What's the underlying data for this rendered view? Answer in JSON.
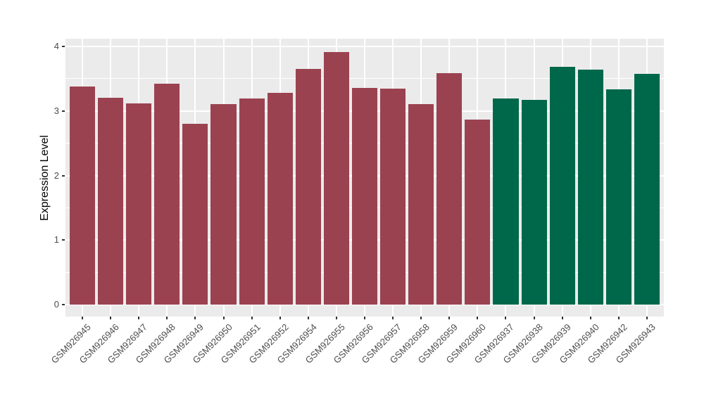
{
  "chart_data": {
    "type": "bar",
    "title": "",
    "xlabel": "",
    "ylabel": "Expression Level",
    "ylim": [
      0,
      4
    ],
    "y_ticks": [
      0,
      1,
      2,
      3,
      4
    ],
    "y_minor_gridlines": [
      0.5,
      1.5,
      2.5,
      3.5
    ],
    "grid": "on",
    "legend_position": "none",
    "panel_background": "#EBEBEB",
    "gridline_color": "#FFFFFF",
    "axis_text_color": "#4D4D4D",
    "tick_mark_color": "#333333",
    "categories": [
      "GSM926945",
      "GSM926946",
      "GSM926947",
      "GSM926948",
      "GSM926949",
      "GSM926950",
      "GSM926951",
      "GSM926952",
      "GSM926954",
      "GSM926955",
      "GSM926956",
      "GSM926957",
      "GSM926958",
      "GSM926959",
      "GSM926960",
      "GSM926937",
      "GSM926938",
      "GSM926939",
      "GSM926940",
      "GSM926942",
      "GSM926943"
    ],
    "values": [
      3.38,
      3.2,
      3.12,
      3.42,
      2.8,
      3.11,
      3.19,
      3.28,
      3.65,
      3.91,
      3.36,
      3.35,
      3.11,
      3.59,
      2.87,
      3.19,
      3.17,
      3.68,
      3.64,
      3.34,
      3.58
    ],
    "groups": [
      "maroon",
      "maroon",
      "maroon",
      "maroon",
      "maroon",
      "maroon",
      "maroon",
      "maroon",
      "maroon",
      "maroon",
      "maroon",
      "maroon",
      "maroon",
      "maroon",
      "maroon",
      "green",
      "green",
      "green",
      "green",
      "green",
      "green"
    ],
    "group_colors": {
      "maroon": "#9B4250",
      "green": "#00684A"
    }
  }
}
